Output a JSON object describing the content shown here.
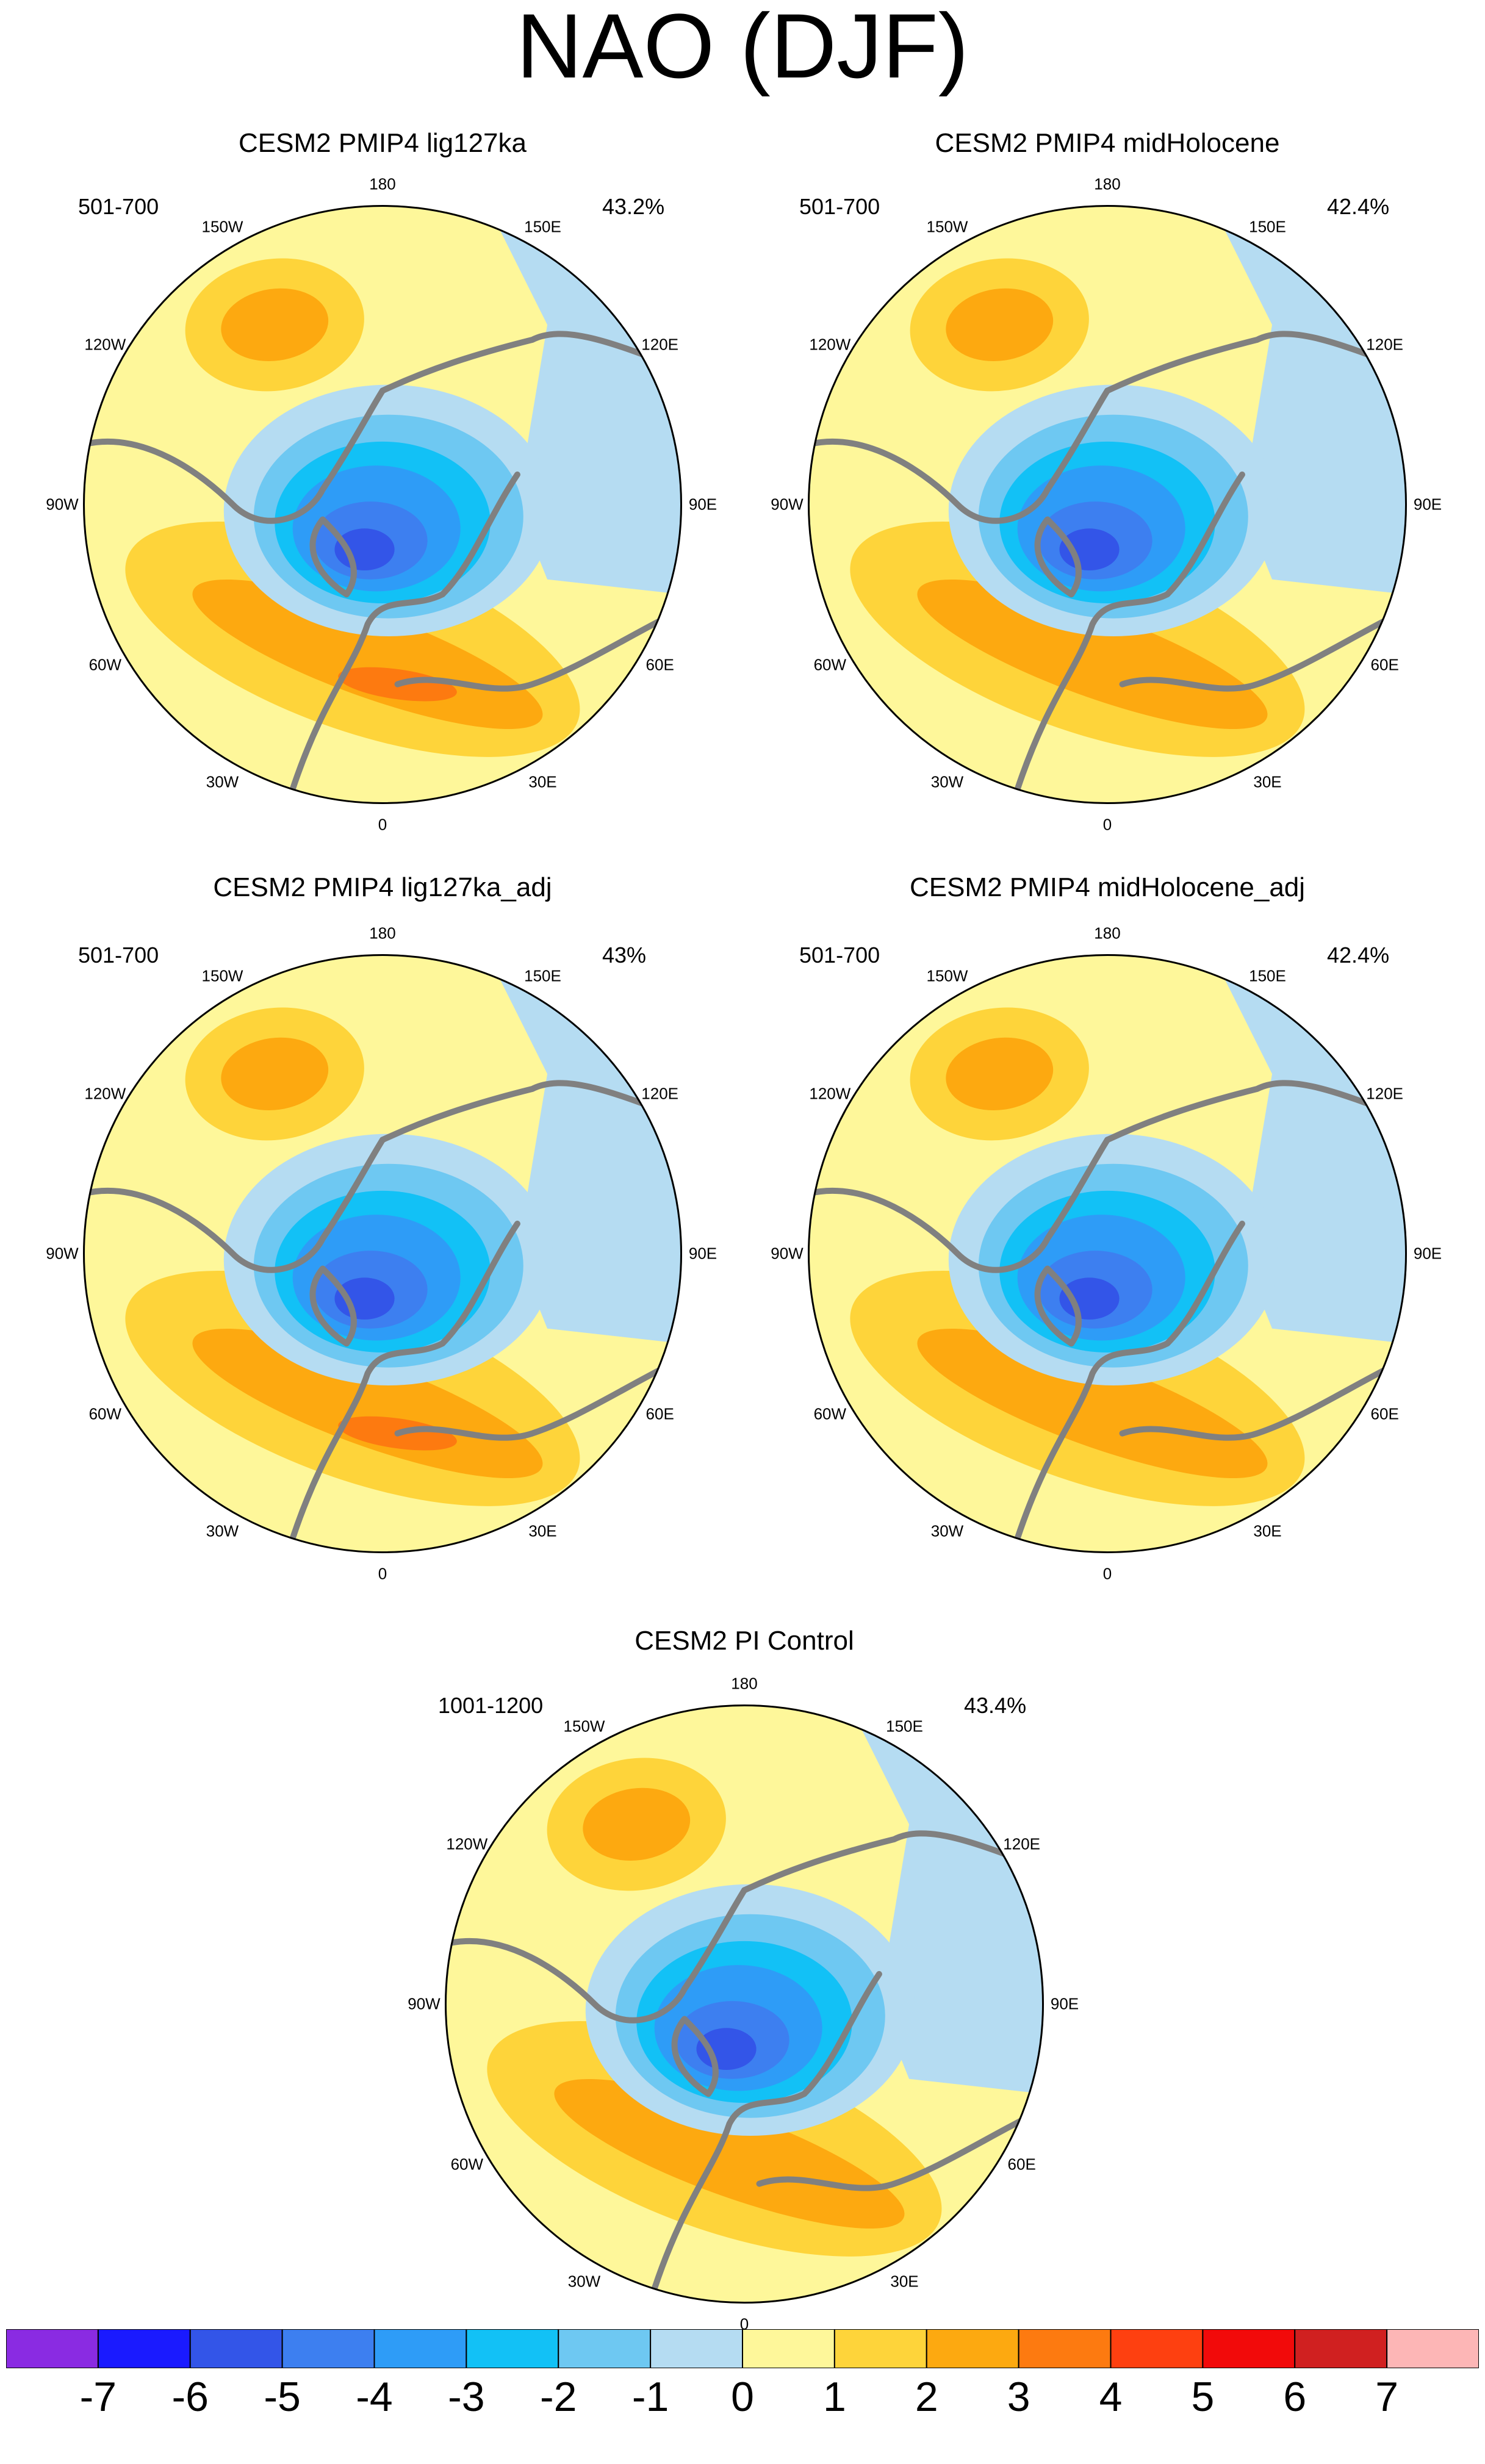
{
  "title": "NAO (DJF)",
  "lon_labels": [
    "180",
    "150E",
    "120E",
    "90E",
    "60E",
    "30E",
    "0",
    "30W",
    "60W",
    "90W",
    "120W",
    "150W"
  ],
  "panels": [
    {
      "title": "CESM2 PMIP4 lig127ka",
      "period": "501-700",
      "variance": "43.2%"
    },
    {
      "title": "CESM2 PMIP4 midHolocene",
      "period": "501-700",
      "variance": "42.4%"
    },
    {
      "title": "CESM2 PMIP4 lig127ka_adj",
      "period": "501-700",
      "variance": "43%"
    },
    {
      "title": "CESM2 PMIP4 midHolocene_adj",
      "period": "501-700",
      "variance": "42.4%"
    },
    {
      "title": "CESM2 PI Control",
      "period": "1001-1200",
      "variance": "43.4%"
    }
  ],
  "colorbar": {
    "labels": [
      "-7",
      "-6",
      "-5",
      "-4",
      "-3",
      "-2",
      "-1",
      "0",
      "1",
      "2",
      "3",
      "4",
      "5",
      "6",
      "7"
    ],
    "colors": [
      "#8a2be2",
      "#1a1aff",
      "#3355e8",
      "#3d7ff0",
      "#2e9cf7",
      "#12c1f6",
      "#6ec8f2",
      "#b5dcf2",
      "#fef79a",
      "#fed43a",
      "#fda910",
      "#fd7a10",
      "#fe4010",
      "#f20a0a",
      "#d02020",
      "#fdb6b6"
    ]
  },
  "map_colors": {
    "land_outline": "#808080",
    "background": "#fef79a",
    "neg1": "#b5dcf2",
    "neg2": "#6ec8f2",
    "neg3": "#12c1f6",
    "neg4": "#2e9cf7",
    "neg5": "#3d7ff0",
    "neg6": "#3355e8",
    "pos2": "#fed43a",
    "pos3": "#fda910",
    "pos4": "#fd7a10"
  }
}
